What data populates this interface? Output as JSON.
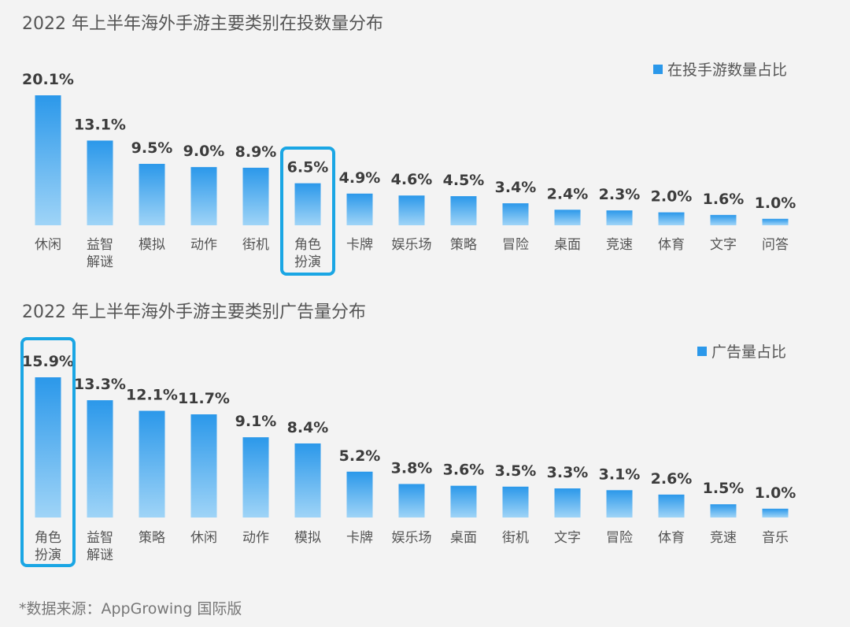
{
  "colors": {
    "bar_top": "#2b98ea",
    "bar_bottom": "#9fd4f7",
    "highlight_border": "#1aa6e4",
    "value_label": "#3c3c3c",
    "category_label": "#555555"
  },
  "source_note": "*数据来源：AppGrowing 国际版",
  "chart_data": [
    {
      "type": "bar",
      "title": "2022 年上半年海外手游主要类别在投数量分布",
      "legend": "在投手游数量占比",
      "legend_position": "top-right",
      "grid": false,
      "ylim": [
        0,
        20.1
      ],
      "categories": [
        [
          "休闲"
        ],
        [
          "益智",
          "解谜"
        ],
        [
          "模拟"
        ],
        [
          "动作"
        ],
        [
          "街机"
        ],
        [
          "角色",
          "扮演"
        ],
        [
          "卡牌"
        ],
        [
          "娱乐场"
        ],
        [
          "策略"
        ],
        [
          "冒险"
        ],
        [
          "桌面"
        ],
        [
          "竞速"
        ],
        [
          "体育"
        ],
        [
          "文字"
        ],
        [
          "问答"
        ]
      ],
      "values": [
        20.1,
        13.1,
        9.5,
        9.0,
        8.9,
        6.5,
        4.9,
        4.6,
        4.5,
        3.4,
        2.4,
        2.3,
        2.0,
        1.6,
        1.0
      ],
      "value_labels": [
        "20.1%",
        "13.1%",
        "9.5%",
        "9.0%",
        "8.9%",
        "6.5%",
        "4.9%",
        "4.6%",
        "4.5%",
        "3.4%",
        "2.4%",
        "2.3%",
        "2.0%",
        "1.6%",
        "1.0%"
      ],
      "highlight_index": 5
    },
    {
      "type": "bar",
      "title": "2022 年上半年海外手游主要类别广告量分布",
      "legend": "广告量占比",
      "legend_position": "top-right",
      "grid": false,
      "ylim": [
        0,
        15.9
      ],
      "categories": [
        [
          "角色",
          "扮演"
        ],
        [
          "益智",
          "解谜"
        ],
        [
          "策略"
        ],
        [
          "休闲"
        ],
        [
          "动作"
        ],
        [
          "模拟"
        ],
        [
          "卡牌"
        ],
        [
          "娱乐场"
        ],
        [
          "桌面"
        ],
        [
          "街机"
        ],
        [
          "文字"
        ],
        [
          "冒险"
        ],
        [
          "体育"
        ],
        [
          "竞速"
        ],
        [
          "音乐"
        ]
      ],
      "values": [
        15.9,
        13.3,
        12.1,
        11.7,
        9.1,
        8.4,
        5.2,
        3.8,
        3.6,
        3.5,
        3.3,
        3.1,
        2.6,
        1.5,
        1.0
      ],
      "value_labels": [
        "15.9%",
        "13.3%",
        "12.1%",
        "11.7%",
        "9.1%",
        "8.4%",
        "5.2%",
        "3.8%",
        "3.6%",
        "3.5%",
        "3.3%",
        "3.1%",
        "2.6%",
        "1.5%",
        "1.0%"
      ],
      "highlight_index": 0
    }
  ]
}
